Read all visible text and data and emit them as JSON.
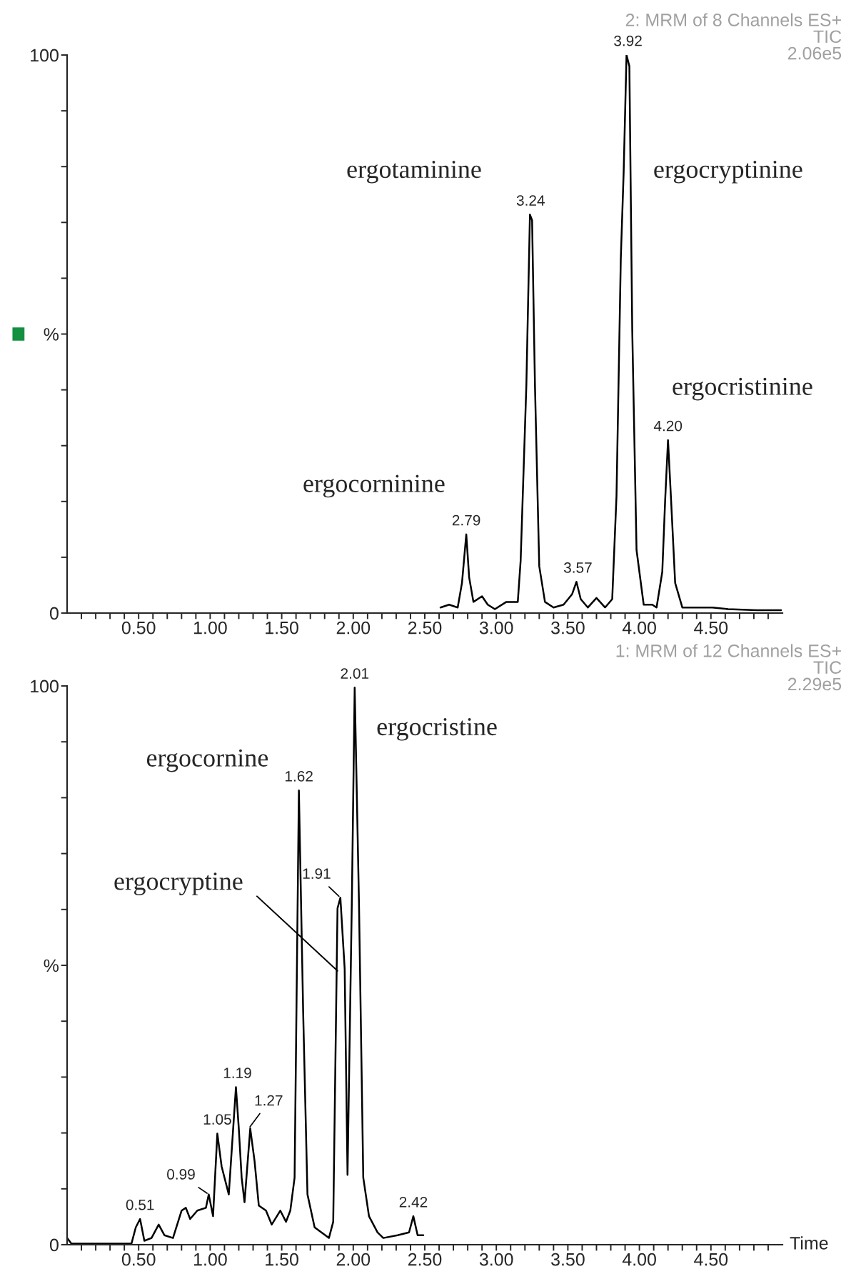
{
  "chart_data": [
    {
      "type": "line",
      "title": "2: MRM of 8 Channels ES+\nTIC\n2.06e5",
      "series": [
        {
          "color": "#000000",
          "x": [
            2.61,
            2.67,
            2.73,
            2.76,
            2.79,
            2.81,
            2.84,
            2.9,
            2.94,
            2.99,
            3.07,
            3.15,
            3.17,
            3.21,
            3.235,
            3.25,
            3.27,
            3.3,
            3.34,
            3.4,
            3.47,
            3.53,
            3.56,
            3.59,
            3.64,
            3.7,
            3.76,
            3.81,
            3.84,
            3.87,
            3.89,
            3.91,
            3.93,
            3.95,
            3.98,
            4.03,
            4.09,
            4.12,
            4.16,
            4.18,
            4.2,
            4.22,
            4.25,
            4.3,
            4.51,
            4.62,
            4.82,
            4.99
          ],
          "values": [
            1,
            1.5,
            1,
            5.4,
            14.1,
            6.4,
            2,
            3,
            1.5,
            0.7,
            2,
            2,
            9.4,
            40.9,
            71.4,
            70.4,
            40.9,
            8.4,
            2,
            1,
            1.5,
            3.4,
            5.6,
            2.5,
            1,
            2.7,
            1,
            2.5,
            21,
            63.5,
            79,
            100,
            98,
            50.7,
            11.3,
            1.5,
            1.5,
            1,
            7.4,
            20.2,
            31,
            21,
            5.4,
            1,
            1,
            0.7,
            0.5,
            0.5
          ]
        }
      ],
      "xlim": [
        0,
        5.0
      ],
      "xticks": [
        {
          "value": 0.1,
          "label": null
        },
        {
          "value": 0.2,
          "label": null
        },
        {
          "value": 0.3,
          "label": null
        },
        {
          "value": 0.4,
          "label": null
        },
        {
          "value": 0.5,
          "label": "0.50"
        },
        {
          "value": 0.6,
          "label": null
        },
        {
          "value": 0.7,
          "label": null
        },
        {
          "value": 0.8,
          "label": null
        },
        {
          "value": 0.9,
          "label": null
        },
        {
          "value": 1.0,
          "label": "1.00"
        },
        {
          "value": 1.1,
          "label": null
        },
        {
          "value": 1.2,
          "label": null
        },
        {
          "value": 1.3,
          "label": null
        },
        {
          "value": 1.4,
          "label": null
        },
        {
          "value": 1.5,
          "label": "1.50"
        },
        {
          "value": 1.6,
          "label": null
        },
        {
          "value": 1.7,
          "label": null
        },
        {
          "value": 1.8,
          "label": null
        },
        {
          "value": 1.9,
          "label": null
        },
        {
          "value": 2.0,
          "label": "2.00"
        },
        {
          "value": 2.1,
          "label": null
        },
        {
          "value": 2.2,
          "label": null
        },
        {
          "value": 2.3,
          "label": null
        },
        {
          "value": 2.4,
          "label": null
        },
        {
          "value": 2.5,
          "label": "2.50"
        },
        {
          "value": 2.6,
          "label": null
        },
        {
          "value": 2.7,
          "label": null
        },
        {
          "value": 2.8,
          "label": null
        },
        {
          "value": 2.9,
          "label": null
        },
        {
          "value": 3.0,
          "label": "3.00"
        },
        {
          "value": 3.1,
          "label": null
        },
        {
          "value": 3.2,
          "label": null
        },
        {
          "value": 3.3,
          "label": null
        },
        {
          "value": 3.4,
          "label": null
        },
        {
          "value": 3.5,
          "label": "3.50"
        },
        {
          "value": 3.6,
          "label": null
        },
        {
          "value": 3.7,
          "label": null
        },
        {
          "value": 3.8,
          "label": null
        },
        {
          "value": 3.9,
          "label": null
        },
        {
          "value": 4.0,
          "label": "4.00"
        },
        {
          "value": 4.1,
          "label": null
        },
        {
          "value": 4.2,
          "label": null
        },
        {
          "value": 4.3,
          "label": null
        },
        {
          "value": 4.4,
          "label": null
        },
        {
          "value": 4.5,
          "label": "4.50"
        },
        {
          "value": 4.6,
          "label": null
        },
        {
          "value": 4.7,
          "label": null
        },
        {
          "value": 4.8,
          "label": null
        },
        {
          "value": 4.9,
          "label": null
        }
      ],
      "ylim": [
        0,
        100
      ],
      "yticks": [
        0,
        {
          "value": 10,
          "label": null
        },
        {
          "value": 20,
          "label": null
        },
        {
          "value": 30,
          "label": null
        },
        {
          "value": 40,
          "label": null
        },
        {
          "value": 50,
          "label": "%"
        },
        {
          "value": 60,
          "label": null
        },
        {
          "value": 70,
          "label": null
        },
        {
          "value": 80,
          "label": null
        },
        {
          "value": 90,
          "label": null
        },
        100
      ],
      "annotations": [
        "ergocorninine",
        "ergotaminine",
        "ergocryptinine",
        "ergocristinine",
        {
          "text": "2.79",
          "x": 2.79,
          "y": 14.1
        },
        {
          "text": "3.24",
          "x": 3.24,
          "y": 71.4
        },
        {
          "text": "3.57",
          "x": 3.57,
          "y": 5.6
        },
        {
          "text": "3.92",
          "x": 3.92,
          "y": 100
        },
        {
          "text": "4.20",
          "x": 4.2,
          "y": 31
        }
      ]
    },
    {
      "type": "line",
      "title": "1: MRM of 12 Channels ES+\nTIC\n2.29e5",
      "xlabel": "Time",
      "series": [
        {
          "color": "#000000",
          "x": [
            0,
            0.03,
            0.45,
            0.48,
            0.51,
            0.54,
            0.59,
            0.64,
            0.68,
            0.74,
            0.8,
            0.83,
            0.86,
            0.91,
            0.97,
            0.99,
            1.02,
            1.05,
            1.08,
            1.13,
            1.18,
            1.2,
            1.22,
            1.24,
            1.28,
            1.31,
            1.34,
            1.39,
            1.43,
            1.49,
            1.53,
            1.56,
            1.59,
            1.62,
            1.65,
            1.68,
            1.73,
            1.83,
            1.86,
            1.89,
            1.91,
            1.94,
            1.96,
            1.99,
            2.01,
            2.04,
            2.07,
            2.11,
            2.17,
            2.21,
            2.31,
            2.39,
            2.42,
            2.45,
            2.49
          ],
          "values": [
            1.2,
            0.2,
            0.2,
            3.1,
            4.6,
            0.7,
            1.2,
            3.6,
            1.7,
            1.2,
            6.1,
            6.6,
            4.6,
            6.1,
            6.6,
            9,
            5.1,
            19.9,
            14,
            9,
            28.2,
            20.8,
            12,
            7.6,
            20.8,
            15,
            7,
            6.1,
            3.6,
            6.1,
            4.1,
            6.1,
            12,
            81.3,
            41.5,
            9,
            3.1,
            1.2,
            4.1,
            60.2,
            62.1,
            49.4,
            12.5,
            61.2,
            99.7,
            61.2,
            12,
            5.1,
            2.2,
            1.2,
            1.7,
            2.2,
            5.1,
            1.7,
            1.7
          ]
        }
      ],
      "xlim": [
        0,
        5.0
      ],
      "xticks": [
        {
          "value": 0.1,
          "label": null
        },
        {
          "value": 0.2,
          "label": null
        },
        {
          "value": 0.3,
          "label": null
        },
        {
          "value": 0.4,
          "label": null
        },
        {
          "value": 0.5,
          "label": "0.50"
        },
        {
          "value": 0.6,
          "label": null
        },
        {
          "value": 0.7,
          "label": null
        },
        {
          "value": 0.8,
          "label": null
        },
        {
          "value": 0.9,
          "label": null
        },
        {
          "value": 1.0,
          "label": "1.00"
        },
        {
          "value": 1.1,
          "label": null
        },
        {
          "value": 1.2,
          "label": null
        },
        {
          "value": 1.3,
          "label": null
        },
        {
          "value": 1.4,
          "label": null
        },
        {
          "value": 1.5,
          "label": "1.50"
        },
        {
          "value": 1.6,
          "label": null
        },
        {
          "value": 1.7,
          "label": null
        },
        {
          "value": 1.8,
          "label": null
        },
        {
          "value": 1.9,
          "label": null
        },
        {
          "value": 2.0,
          "label": "2.00"
        },
        {
          "value": 2.1,
          "label": null
        },
        {
          "value": 2.2,
          "label": null
        },
        {
          "value": 2.3,
          "label": null
        },
        {
          "value": 2.4,
          "label": null
        },
        {
          "value": 2.5,
          "label": "2.50"
        },
        {
          "value": 2.6,
          "label": null
        },
        {
          "value": 2.7,
          "label": null
        },
        {
          "value": 2.8,
          "label": null
        },
        {
          "value": 2.9,
          "label": null
        },
        {
          "value": 3.0,
          "label": "3.00"
        },
        {
          "value": 3.1,
          "label": null
        },
        {
          "value": 3.2,
          "label": null
        },
        {
          "value": 3.3,
          "label": null
        },
        {
          "value": 3.4,
          "label": null
        },
        {
          "value": 3.5,
          "label": "3.50"
        },
        {
          "value": 3.6,
          "label": null
        },
        {
          "value": 3.7,
          "label": null
        },
        {
          "value": 3.8,
          "label": null
        },
        {
          "value": 3.9,
          "label": null
        },
        {
          "value": 4.0,
          "label": "4.00"
        },
        {
          "value": 4.1,
          "label": null
        },
        {
          "value": 4.2,
          "label": null
        },
        {
          "value": 4.3,
          "label": null
        },
        {
          "value": 4.4,
          "label": null
        },
        {
          "value": 4.5,
          "label": "4.50"
        },
        {
          "value": 4.6,
          "label": null
        },
        {
          "value": 4.7,
          "label": null
        },
        {
          "value": 4.8,
          "label": null
        },
        {
          "value": 4.9,
          "label": null
        }
      ],
      "ylim": [
        0,
        100
      ],
      "yticks": [
        0,
        {
          "value": 10,
          "label": null
        },
        {
          "value": 20,
          "label": null
        },
        {
          "value": 30,
          "label": null
        },
        {
          "value": 40,
          "label": null
        },
        {
          "value": 50,
          "label": "%"
        },
        {
          "value": 60,
          "label": null
        },
        {
          "value": 70,
          "label": null
        },
        {
          "value": 80,
          "label": null
        },
        {
          "value": 90,
          "label": null
        },
        100
      ],
      "annotations": [
        "ergocornine",
        "ergocristine",
        {
          "text": "ergocryptine",
          "x": 1.89,
          "y": 49
        },
        {
          "text": "0.51",
          "x": 0.51,
          "y": 4.6
        },
        {
          "text": "0.99",
          "x": 0.99,
          "y": 9
        },
        {
          "text": "1.05",
          "x": 1.05,
          "y": 19.9
        },
        {
          "text": "1.19",
          "x": 1.19,
          "y": 28.2
        },
        {
          "text": "1.27",
          "x": 1.27,
          "y": 20.8
        },
        {
          "text": "1.62",
          "x": 1.62,
          "y": 81.3
        },
        {
          "text": "1.91",
          "x": 1.91,
          "y": 62.1
        },
        {
          "text": "2.01",
          "x": 2.01,
          "y": 99.7
        },
        {
          "text": "2.42",
          "x": 2.42,
          "y": 5.1
        }
      ]
    }
  ]
}
